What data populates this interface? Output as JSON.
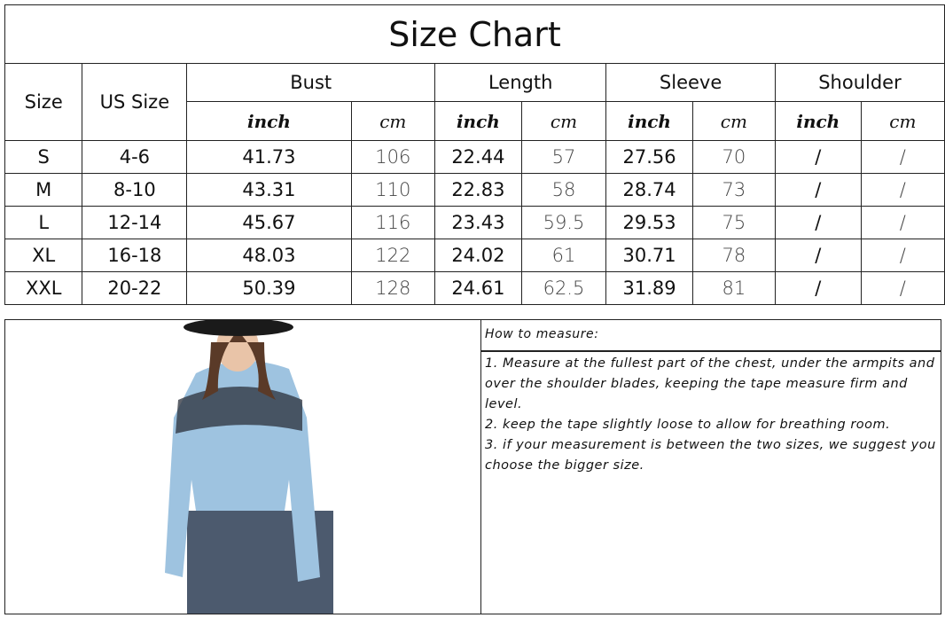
{
  "title": "Size Chart",
  "headers": {
    "size": "Size",
    "us_size": "US Size",
    "groups": [
      "Bust",
      "Length",
      "Sleeve",
      "Shoulder"
    ],
    "inch": "inch",
    "cm": "cm"
  },
  "rows": [
    {
      "size": "S",
      "us": "4-6",
      "bust_in": "41.73",
      "bust_cm": "106",
      "length_in": "22.44",
      "length_cm": "57",
      "sleeve_in": "27.56",
      "sleeve_cm": "70",
      "shoulder_in": "/",
      "shoulder_cm": "/"
    },
    {
      "size": "M",
      "us": "8-10",
      "bust_in": "43.31",
      "bust_cm": "110",
      "length_in": "22.83",
      "length_cm": "58",
      "sleeve_in": "28.74",
      "sleeve_cm": "73",
      "shoulder_in": "/",
      "shoulder_cm": "/"
    },
    {
      "size": "L",
      "us": "12-14",
      "bust_in": "45.67",
      "bust_cm": "116",
      "length_in": "23.43",
      "length_cm": "59.5",
      "sleeve_in": "29.53",
      "sleeve_cm": "75",
      "shoulder_in": "/",
      "shoulder_cm": "/"
    },
    {
      "size": "XL",
      "us": "16-18",
      "bust_in": "48.03",
      "bust_cm": "122",
      "length_in": "24.02",
      "length_cm": "61",
      "sleeve_in": "30.71",
      "sleeve_cm": "78",
      "shoulder_in": "/",
      "shoulder_cm": "/"
    },
    {
      "size": "XXL",
      "us": "20-22",
      "bust_in": "50.39",
      "bust_cm": "128",
      "length_in": "24.61",
      "length_cm": "62.5",
      "sleeve_in": "31.89",
      "sleeve_cm": "81",
      "shoulder_in": "/",
      "shoulder_cm": "/"
    }
  ],
  "measure": {
    "heading": "How to measure:",
    "steps": [
      "1. Measure at the fullest part of the chest, under the armpits and over the shoulder blades, keeping the tape measure firm and level.",
      "2. keep the tape slightly loose to allow for breathing room.",
      "3. if your measurement is between the two sizes, we suggest you choose the bigger size."
    ]
  },
  "colors": {
    "sweater": "#9ec3e0",
    "jeans": "#4c5a6e",
    "hat": "#1a1a1a"
  }
}
